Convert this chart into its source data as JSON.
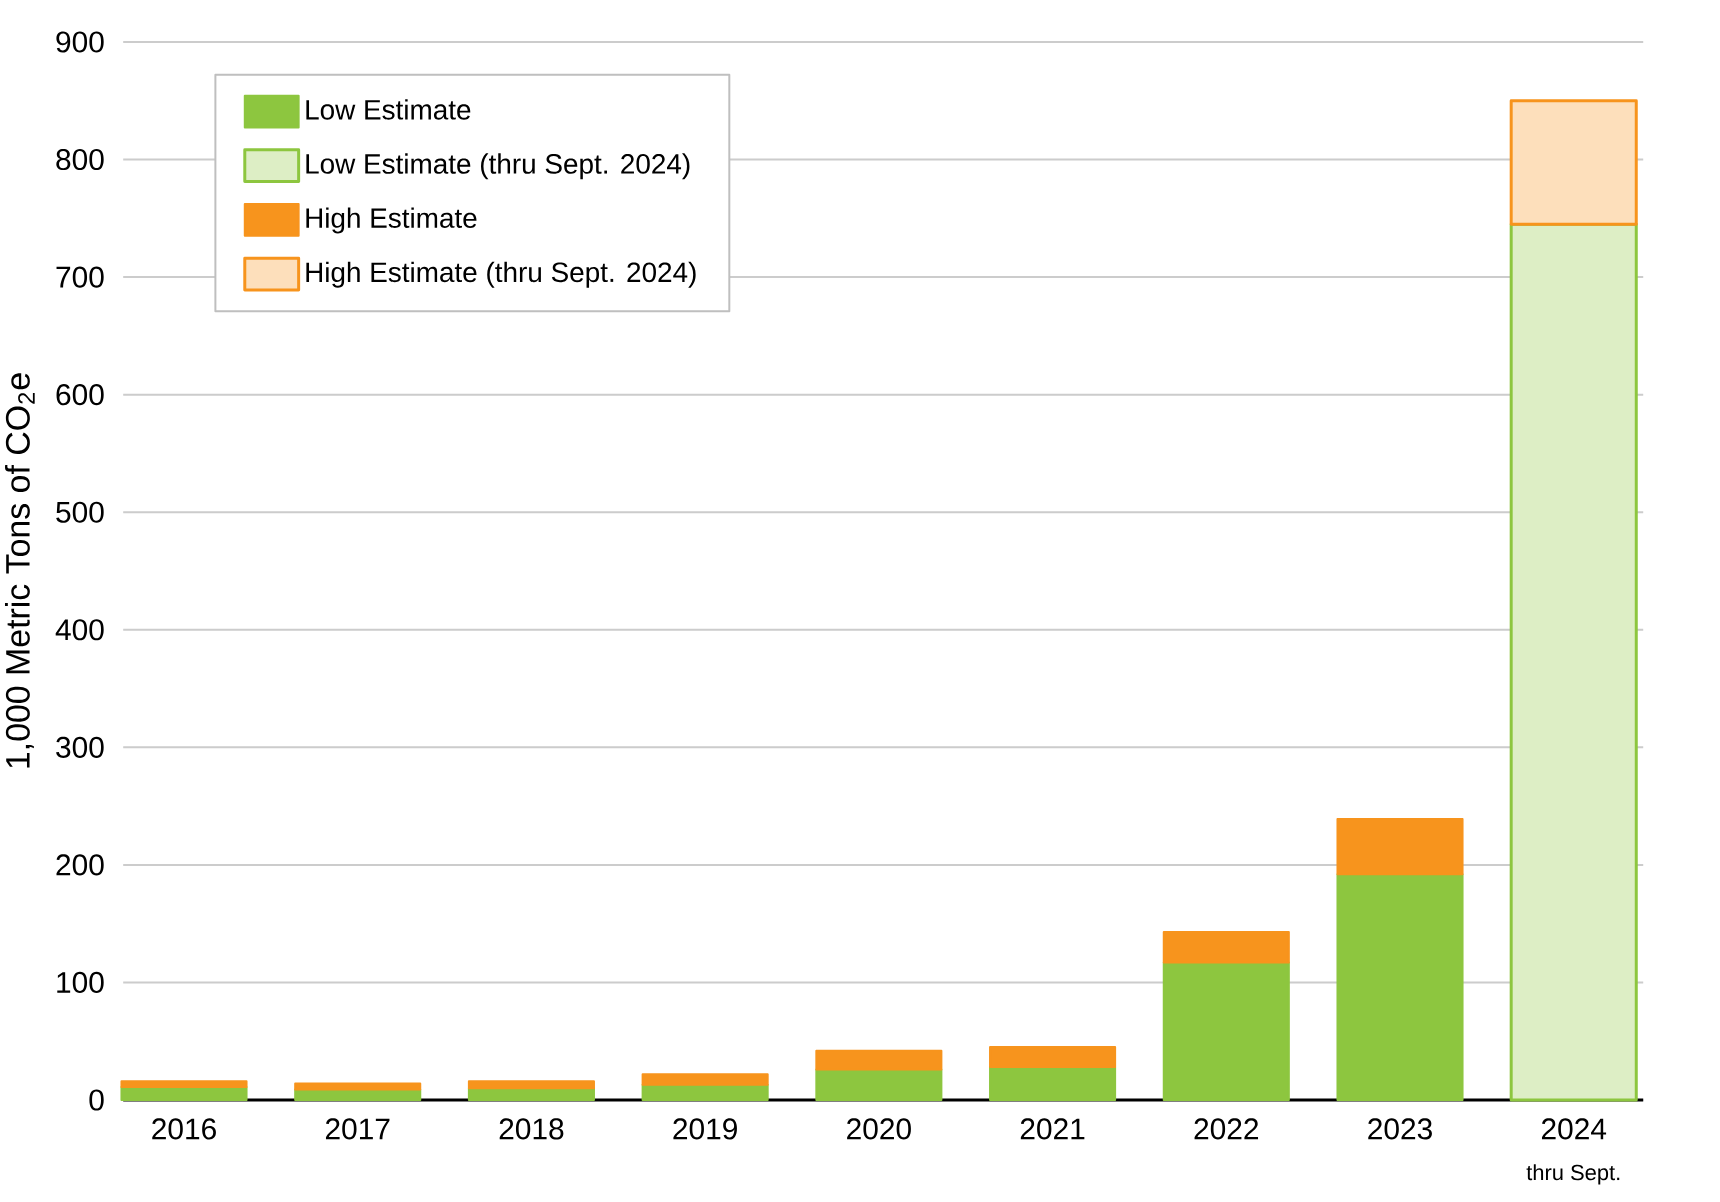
{
  "chart_data": {
    "type": "bar",
    "stacked": true,
    "ylabel": "1,000 Metric Tons of CO$_{2}$e",
    "categories": [
      "2016",
      "2017",
      "2018",
      "2019",
      "2020",
      "2021",
      "2022",
      "2023",
      "2024"
    ],
    "series": [
      {
        "name": "Low Estimate",
        "color": "#8dc63f",
        "values": [
          11,
          9,
          10,
          13,
          26,
          28,
          117,
          192,
          null
        ]
      },
      {
        "name": "Low Estimate (thru Sept. 2024)",
        "color": "#8dc63f",
        "values": [
          null,
          null,
          null,
          null,
          null,
          null,
          null,
          null,
          745
        ]
      },
      {
        "name": "High Estimate",
        "color": "#f7941d",
        "values": [
          5,
          5,
          6,
          9,
          16,
          17,
          26,
          47,
          null
        ]
      },
      {
        "name": "High Estimate (thru Sept. 2024)",
        "color": "#f7941d",
        "values": [
          null,
          null,
          null,
          null,
          null,
          null,
          null,
          null,
          105
        ]
      }
    ],
    "ylim": [
      0,
      900
    ],
    "yticks": [
      0,
      100,
      200,
      300,
      400,
      500,
      600,
      700,
      800,
      900
    ],
    "grid": "y",
    "legend": "top left",
    "annotations": [
      "thru Sept."
    ]
  }
}
